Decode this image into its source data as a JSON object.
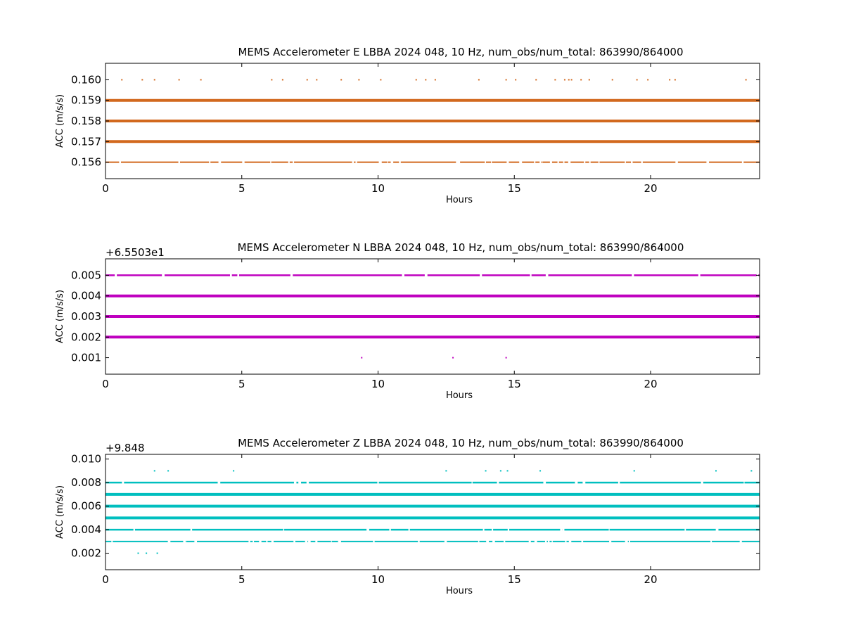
{
  "chart_data": [
    {
      "type": "scatter",
      "title": "MEMS Accelerometer E LBBA 2024 048, 10 Hz, num_obs/num_total: 863990/864000",
      "xlabel": "Hours",
      "ylabel": "ACC (m/s/s)",
      "offset_label": "",
      "color": "#d2691e",
      "xlim": [
        0,
        24
      ],
      "ylim": [
        0.1552,
        0.1608
      ],
      "xticks": [
        0,
        5,
        10,
        15,
        20
      ],
      "yticks": [
        0.156,
        0.157,
        0.158,
        0.159,
        0.16
      ],
      "ytick_labels": [
        "0.156",
        "0.157",
        "0.158",
        "0.159",
        "0.160"
      ],
      "levels": [
        {
          "y": 0.156,
          "density": "sparse"
        },
        {
          "y": 0.157,
          "density": "dense"
        },
        {
          "y": 0.158,
          "density": "dense"
        },
        {
          "y": 0.159,
          "density": "dense"
        }
      ],
      "sparse_points": [
        {
          "y": 0.16,
          "x": [
            0.6,
            1.35,
            1.8,
            2.7,
            3.5,
            6.1,
            6.5,
            7.4,
            7.75,
            8.65,
            9.3,
            10.1,
            11.4,
            11.75,
            12.1,
            13.7,
            14.7,
            15.05,
            15.8,
            16.5,
            16.85,
            17.0,
            17.1,
            17.45,
            17.75,
            18.6,
            19.5,
            19.9,
            20.7,
            20.9,
            23.5
          ]
        }
      ]
    },
    {
      "type": "scatter",
      "title": "MEMS Accelerometer N LBBA 2024 048, 10 Hz, num_obs/num_total: 863990/864000",
      "xlabel": "Hours",
      "ylabel": "ACC (m/s/s)",
      "offset_label": "+6.5503e1",
      "color": "#bf00bf",
      "xlim": [
        0,
        24
      ],
      "ylim": [
        0.0002,
        0.0058
      ],
      "xticks": [
        0,
        5,
        10,
        15,
        20
      ],
      "yticks": [
        0.001,
        0.002,
        0.003,
        0.004,
        0.005
      ],
      "ytick_labels": [
        "0.001",
        "0.002",
        "0.003",
        "0.004",
        "0.005"
      ],
      "levels": [
        {
          "y": 0.002,
          "density": "dense"
        },
        {
          "y": 0.003,
          "density": "dense"
        },
        {
          "y": 0.004,
          "density": "dense"
        },
        {
          "y": 0.005,
          "density": "medium"
        }
      ],
      "sparse_points": [
        {
          "y": 0.001,
          "x": [
            9.4,
            12.75,
            14.7
          ]
        }
      ]
    },
    {
      "type": "scatter",
      "title": "MEMS Accelerometer Z LBBA 2024 048, 10 Hz, num_obs/num_total: 863990/864000",
      "xlabel": "Hours",
      "ylabel": "ACC (m/s/s)",
      "offset_label": "+9.848",
      "color": "#00bfbf",
      "xlim": [
        0,
        24
      ],
      "ylim": [
        0.0006,
        0.0104
      ],
      "xticks": [
        0,
        5,
        10,
        15,
        20
      ],
      "yticks": [
        0.002,
        0.004,
        0.006,
        0.008,
        0.01
      ],
      "ytick_labels": [
        "0.002",
        "0.004",
        "0.006",
        "0.008",
        "0.010"
      ],
      "levels": [
        {
          "y": 0.003,
          "density": "sparse"
        },
        {
          "y": 0.004,
          "density": "medium"
        },
        {
          "y": 0.005,
          "density": "dense"
        },
        {
          "y": 0.006,
          "density": "dense"
        },
        {
          "y": 0.007,
          "density": "dense"
        },
        {
          "y": 0.008,
          "density": "medium"
        }
      ],
      "sparse_points": [
        {
          "y": 0.009,
          "x": [
            1.8,
            2.3,
            4.7,
            12.5,
            13.95,
            14.5,
            14.75,
            15.95,
            19.4,
            22.4,
            23.7
          ]
        },
        {
          "y": 0.002,
          "x": [
            1.2,
            1.5,
            1.9
          ]
        }
      ]
    }
  ]
}
